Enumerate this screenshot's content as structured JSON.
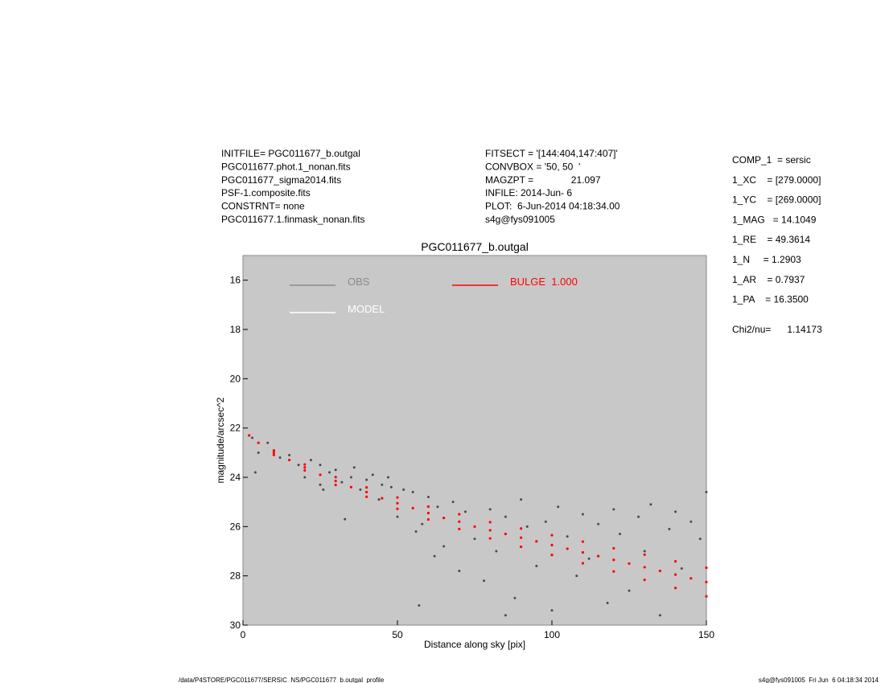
{
  "chart_data": {
    "type": "scatter",
    "title": "PGC011677_b.outgal",
    "x_label": "Distance along sky [pix]",
    "y_label": "magnitude/arcsec^2",
    "xlim": [
      0,
      150
    ],
    "xticks": [
      0,
      50,
      100,
      150
    ],
    "ylim": [
      30,
      15
    ],
    "yticks": [
      16,
      18,
      20,
      22,
      24,
      26,
      28,
      30
    ],
    "background": "#c8c8c8",
    "series": [
      {
        "name": "OBS",
        "color": "#4a4a4a",
        "legend_color": "#8a8a8a",
        "x": [
          3,
          5,
          4,
          8,
          12,
          15,
          18,
          20,
          22,
          25,
          26,
          28,
          30,
          32,
          35,
          36,
          38,
          40,
          42,
          44,
          45,
          48,
          50,
          52,
          55,
          56,
          58,
          60,
          62,
          63,
          65,
          68,
          70,
          72,
          75,
          78,
          80,
          82,
          85,
          88,
          90,
          92,
          95,
          98,
          100,
          102,
          105,
          108,
          110,
          112,
          115,
          118,
          120,
          122,
          125,
          128,
          130,
          132,
          135,
          138,
          140,
          142,
          145,
          148,
          150,
          33,
          25,
          47,
          57,
          85
        ],
        "values": [
          22.4,
          23.0,
          23.8,
          22.6,
          23.2,
          23.1,
          23.5,
          24.0,
          23.3,
          23.5,
          24.5,
          23.8,
          23.7,
          24.2,
          24.0,
          23.6,
          24.5,
          24.1,
          23.9,
          24.9,
          24.3,
          24.4,
          25.6,
          24.5,
          24.6,
          26.2,
          25.9,
          24.8,
          27.2,
          25.2,
          26.8,
          25.0,
          27.8,
          25.4,
          26.5,
          28.2,
          25.3,
          27.0,
          25.6,
          28.9,
          24.9,
          26.0,
          27.6,
          25.8,
          29.4,
          25.2,
          26.4,
          28.0,
          25.5,
          27.3,
          25.9,
          29.1,
          25.3,
          26.3,
          28.6,
          25.6,
          27.0,
          25.1,
          29.6,
          26.1,
          25.4,
          27.7,
          25.8,
          26.5,
          24.6,
          25.7,
          24.3,
          24.0,
          29.2,
          29.6
        ]
      },
      {
        "name": "MODEL",
        "color": "#ffffff",
        "legend_color": "#ffffff",
        "x": [],
        "values": []
      },
      {
        "name": "BULGE  1.000",
        "color": "#ff0000",
        "legend_color": "#ff0000",
        "x": [
          2,
          5,
          10,
          15,
          20,
          25,
          30,
          35,
          40,
          45,
          50,
          55,
          60,
          65,
          70,
          75,
          80,
          85,
          90,
          95,
          100,
          105,
          110,
          115,
          120,
          125,
          130,
          135,
          140,
          145,
          150,
          10,
          20,
          30,
          40,
          50,
          60,
          70,
          80,
          90,
          100,
          110,
          120,
          130,
          140,
          150,
          10,
          20,
          30,
          40,
          50,
          60,
          70,
          80,
          90,
          100,
          110,
          120,
          130,
          140,
          150
        ],
        "values": [
          22.3,
          22.6,
          23.0,
          23.3,
          23.6,
          23.9,
          24.15,
          24.4,
          24.6,
          24.85,
          25.05,
          25.25,
          25.45,
          25.65,
          25.8,
          26.0,
          26.15,
          26.3,
          26.45,
          26.6,
          26.75,
          26.9,
          27.05,
          27.2,
          27.35,
          27.5,
          27.65,
          27.8,
          27.95,
          28.1,
          28.25,
          22.91,
          23.48,
          23.99,
          24.41,
          24.82,
          25.19,
          25.5,
          25.82,
          26.08,
          26.35,
          26.61,
          26.88,
          27.14,
          27.41,
          27.67,
          23.09,
          23.72,
          24.31,
          24.79,
          25.28,
          25.71,
          26.1,
          26.48,
          26.82,
          27.15,
          27.49,
          27.82,
          28.16,
          28.49,
          28.83
        ]
      }
    ],
    "annotations": {
      "left": [
        "INITFILE= PGC011677_b.outgal",
        "PGC011677.phot.1_nonan.fits",
        "PGC011677_sigma2014.fits",
        "PSF-1.composite.fits",
        "CONSTRNT= none",
        "PGC011677.1.finmask_nonan.fits"
      ],
      "middle": [
        "FITSECT = '[144:404,147:407]'",
        "CONVBOX = '50, 50  '",
        "MAGZPT =              21.097",
        "INFILE: 2014-Jun- 6",
        "PLOT:  6-Jun-2014 04:18:34.00",
        "s4g@fys091005"
      ],
      "right": [
        "COMP_1  = sersic",
        "1_XC    = [279.0000]",
        "1_YC    = [269.0000]",
        "1_MAG   = 14.1049",
        "1_RE    = 49.3614",
        "1_N     = 1.2903",
        "1_AR    = 0.7937",
        "1_PA    = 16.3500"
      ],
      "chi": "Chi2/nu=      1.14173",
      "footer_left": "/data/P4STORE/PGC011677/SERSIC_NS/PGC011677_b.outgal_profile",
      "footer_right": "s4g@fys091005  Fri Jun  6 04:18:34 2014"
    }
  }
}
